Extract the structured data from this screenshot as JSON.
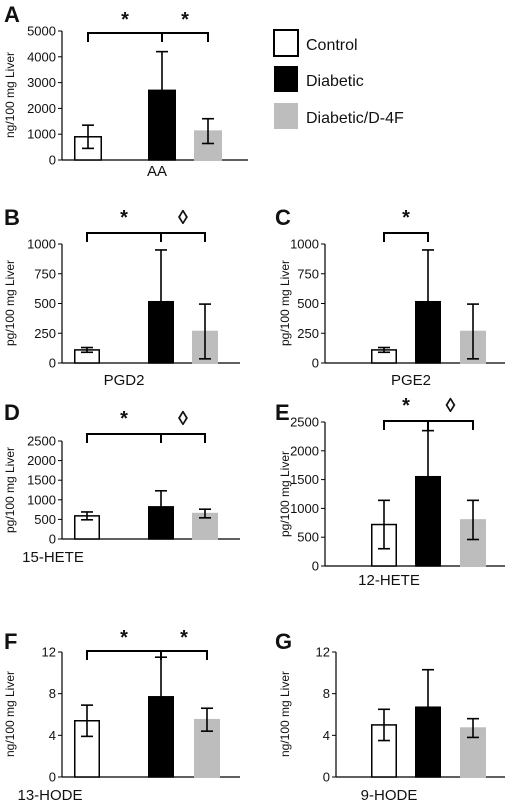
{
  "legend": [
    {
      "label": "Control",
      "fill": "#ffffff",
      "stroke": "#000000"
    },
    {
      "label": "Diabetic",
      "fill": "#000000",
      "stroke": "#000000"
    },
    {
      "label": "Diabetic/D-4F",
      "fill": "#bdbdbd",
      "stroke": "#bdbdbd"
    }
  ],
  "chart_data": [
    {
      "panel": "A",
      "type": "bar",
      "categories": [
        "Control",
        "Diabetic",
        "Diabetic/D-4F"
      ],
      "values": [
        900,
        2700,
        1120
      ],
      "errors": [
        450,
        1500,
        480
      ],
      "ylabel": "ng/100 mg Liver",
      "xlabel": "AA",
      "ylim": [
        0,
        5000
      ],
      "yticks": [
        "0",
        "1000",
        "2000",
        "3000",
        "4000",
        "5000"
      ],
      "brackets": [
        {
          "from": 0,
          "to": 1,
          "symbol": "*"
        },
        {
          "from": 1,
          "to": 2,
          "symbol": "*"
        }
      ]
    },
    {
      "panel": "B",
      "type": "bar",
      "categories": [
        "Control",
        "Diabetic",
        "Diabetic/D-4F"
      ],
      "values": [
        110,
        515,
        265
      ],
      "errors": [
        20,
        435,
        230
      ],
      "ylabel": "pg/100 mg Liver",
      "xlabel": "PGD2",
      "ylim": [
        0,
        1000
      ],
      "yticks": [
        "0",
        "250",
        "500",
        "750",
        "1000"
      ],
      "brackets": [
        {
          "from": 0,
          "to": 1,
          "symbol": "*"
        },
        {
          "from": 1,
          "to": 2,
          "symbol": "◊"
        }
      ]
    },
    {
      "panel": "C",
      "type": "bar",
      "categories": [
        "Control",
        "Diabetic",
        "Diabetic/D-4F"
      ],
      "values": [
        110,
        515,
        265
      ],
      "errors": [
        20,
        435,
        230
      ],
      "ylabel": "pg/100 mg Liver",
      "xlabel": "PGE2",
      "ylim": [
        0,
        1000
      ],
      "yticks": [
        "0",
        "250",
        "500",
        "750",
        "1000"
      ],
      "brackets": [
        {
          "from": 0,
          "to": 1,
          "symbol": "*"
        }
      ]
    },
    {
      "panel": "D",
      "type": "bar",
      "categories": [
        "Control",
        "Diabetic",
        "Diabetic/D-4F"
      ],
      "values": [
        590,
        820,
        650
      ],
      "errors": [
        100,
        410,
        110
      ],
      "ylabel": "pg/100 mg Liver",
      "xlabel": "15-HETE",
      "ylim": [
        0,
        2500
      ],
      "yticks": [
        "0",
        "500",
        "1000",
        "1500",
        "2000",
        "2500"
      ],
      "brackets": [
        {
          "from": 0,
          "to": 1,
          "symbol": "*"
        },
        {
          "from": 1,
          "to": 2,
          "symbol": "◊"
        }
      ]
    },
    {
      "panel": "E",
      "type": "bar",
      "categories": [
        "Control",
        "Diabetic",
        "Diabetic/D-4F"
      ],
      "values": [
        720,
        1550,
        800
      ],
      "errors": [
        420,
        800,
        340
      ],
      "ylabel": "pg/100 mg Liver",
      "xlabel": "12-HETE",
      "ylim": [
        0,
        2500
      ],
      "yticks": [
        "0",
        "500",
        "1000",
        "1500",
        "2000",
        "2500"
      ],
      "brackets": [
        {
          "from": 0,
          "to": 1,
          "symbol": "*"
        },
        {
          "from": 1,
          "to": 2,
          "symbol": "◊"
        }
      ]
    },
    {
      "panel": "F",
      "type": "bar",
      "categories": [
        "Control",
        "Diabetic",
        "Diabetic/D-4F"
      ],
      "values": [
        5.4,
        7.7,
        5.5
      ],
      "errors": [
        1.5,
        3.8,
        1.1
      ],
      "ylabel": "ng/100 mg Liver",
      "xlabel": "13-HODE",
      "ylim": [
        0,
        12
      ],
      "yticks": [
        "0",
        "4",
        "8",
        "12"
      ],
      "brackets": [
        {
          "from": 0,
          "to": 1,
          "symbol": "*"
        },
        {
          "from": 1,
          "to": 2,
          "symbol": "*"
        }
      ]
    },
    {
      "panel": "G",
      "type": "bar",
      "categories": [
        "Control",
        "Diabetic",
        "Diabetic/D-4F"
      ],
      "values": [
        5.0,
        6.7,
        4.7
      ],
      "errors": [
        1.5,
        3.6,
        0.9
      ],
      "ylabel": "ng/100 mg Liver",
      "xlabel": "9-HODE",
      "ylim": [
        0,
        12
      ],
      "yticks": [
        "0",
        "4",
        "8",
        "12"
      ],
      "brackets": []
    }
  ]
}
